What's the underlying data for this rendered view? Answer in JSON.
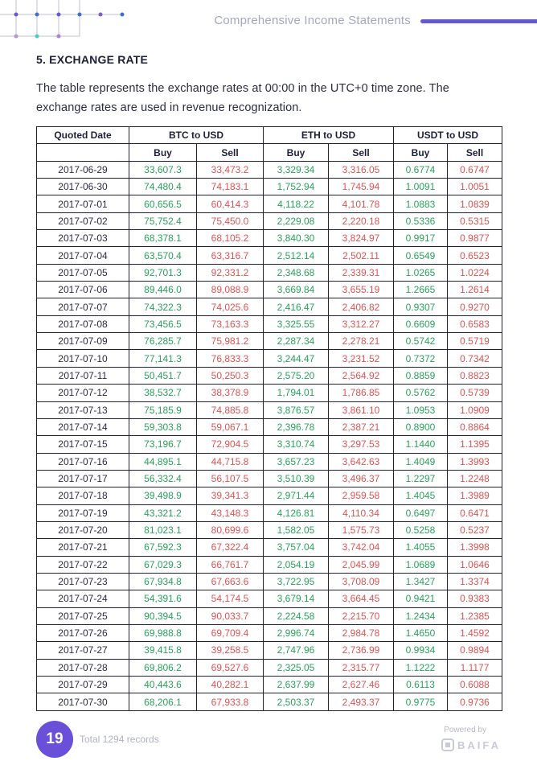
{
  "header": {
    "title": "Comprehensive Income Statements"
  },
  "section": {
    "title": "5. EXCHANGE RATE",
    "intro": "The table represents the exchange rates at 00:00 in the UTC+0 time zone. The exchange rates are used in revenue recognization."
  },
  "table": {
    "headers": {
      "date": "Quoted Date",
      "btc": "BTC to USD",
      "eth": "ETH to USD",
      "usdt": "USDT to USD"
    },
    "sub": {
      "buy": "Buy",
      "sell": "Sell"
    },
    "rows": [
      [
        "2017-06-29",
        "33,607.3",
        "33,473.2",
        "3,329.34",
        "3,316.05",
        "0.6774",
        "0.6747"
      ],
      [
        "2017-06-30",
        "74,480.4",
        "74,183.1",
        "1,752.94",
        "1,745.94",
        "1.0091",
        "1.0051"
      ],
      [
        "2017-07-01",
        "60,656.5",
        "60,414.3",
        "4,118.22",
        "4,101.78",
        "1.0883",
        "1.0839"
      ],
      [
        "2017-07-02",
        "75,752.4",
        "75,450.0",
        "2,229.08",
        "2,220.18",
        "0.5336",
        "0.5315"
      ],
      [
        "2017-07-03",
        "68,378.1",
        "68,105.2",
        "3,840.30",
        "3,824.97",
        "0.9917",
        "0.9877"
      ],
      [
        "2017-07-04",
        "63,570.4",
        "63,316.7",
        "2,512.14",
        "2,502.11",
        "0.6549",
        "0.6523"
      ],
      [
        "2017-07-05",
        "92,701.3",
        "92,331.2",
        "2,348.68",
        "2,339.31",
        "1.0265",
        "1.0224"
      ],
      [
        "2017-07-06",
        "89,446.0",
        "89,088.9",
        "3,669.84",
        "3,655.19",
        "1.2665",
        "1.2614"
      ],
      [
        "2017-07-07",
        "74,322.3",
        "74,025.6",
        "2,416.47",
        "2,406.82",
        "0.9307",
        "0.9270"
      ],
      [
        "2017-07-08",
        "73,456.5",
        "73,163.3",
        "3,325.55",
        "3,312.27",
        "0.6609",
        "0.6583"
      ],
      [
        "2017-07-09",
        "76,285.7",
        "75,981.2",
        "2,287.34",
        "2,278.21",
        "0.5742",
        "0.5719"
      ],
      [
        "2017-07-10",
        "77,141.3",
        "76,833.3",
        "3,244.47",
        "3,231.52",
        "0.7372",
        "0.7342"
      ],
      [
        "2017-07-11",
        "50,451.7",
        "50,250.3",
        "2,575.20",
        "2,564.92",
        "0.8859",
        "0.8823"
      ],
      [
        "2017-07-12",
        "38,532.7",
        "38,378.9",
        "1,794.01",
        "1,786.85",
        "0.5762",
        "0.5739"
      ],
      [
        "2017-07-13",
        "75,185.9",
        "74,885.8",
        "3,876.57",
        "3,861.10",
        "1.0953",
        "1.0909"
      ],
      [
        "2017-07-14",
        "59,303.8",
        "59,067.1",
        "2,396.78",
        "2,387.21",
        "0.8900",
        "0.8864"
      ],
      [
        "2017-07-15",
        "73,196.7",
        "72,904.5",
        "3,310.74",
        "3,297.53",
        "1.1440",
        "1.1395"
      ],
      [
        "2017-07-16",
        "44,895.1",
        "44,715.8",
        "3,657.23",
        "3,642.63",
        "1.4049",
        "1.3993"
      ],
      [
        "2017-07-17",
        "56,332.4",
        "56,107.5",
        "3,510.39",
        "3,496.37",
        "1.2297",
        "1.2248"
      ],
      [
        "2017-07-18",
        "39,498.9",
        "39,341.3",
        "2,971.44",
        "2,959.58",
        "1.4045",
        "1.3989"
      ],
      [
        "2017-07-19",
        "43,321.2",
        "43,148.3",
        "4,126.81",
        "4,110.34",
        "0.6497",
        "0.6471"
      ],
      [
        "2017-07-20",
        "81,023.1",
        "80,699.6",
        "1,582.05",
        "1,575.73",
        "0.5258",
        "0.5237"
      ],
      [
        "2017-07-21",
        "67,592.3",
        "67,322.4",
        "3,757.04",
        "3,742.04",
        "1.4055",
        "1.3998"
      ],
      [
        "2017-07-22",
        "67,029.3",
        "66,761.7",
        "2,054.19",
        "2,045.99",
        "1.0689",
        "1.0646"
      ],
      [
        "2017-07-23",
        "67,934.8",
        "67,663.6",
        "3,722.95",
        "3,708.09",
        "1.3427",
        "1.3374"
      ],
      [
        "2017-07-24",
        "54,391.6",
        "54,174.5",
        "3,679.14",
        "3,664.45",
        "0.9421",
        "0.9383"
      ],
      [
        "2017-07-25",
        "90,394.5",
        "90,033.7",
        "2,224.58",
        "2,215.70",
        "1.2434",
        "1.2385"
      ],
      [
        "2017-07-26",
        "69,988.8",
        "69,709.4",
        "2,996.74",
        "2,984.78",
        "1.4650",
        "1.4592"
      ],
      [
        "2017-07-27",
        "39,415.8",
        "39,258.5",
        "2,747.96",
        "2,736.99",
        "0.9934",
        "0.9894"
      ],
      [
        "2017-07-28",
        "69,806.2",
        "69,527.6",
        "2,325.05",
        "2,315.77",
        "1.1222",
        "1.1177"
      ],
      [
        "2017-07-29",
        "40,443.6",
        "40,282.1",
        "2,637.99",
        "2,627.46",
        "0.6113",
        "0.6088"
      ],
      [
        "2017-07-30",
        "68,206.1",
        "67,933.8",
        "2,503.37",
        "2,493.37",
        "0.9775",
        "0.9736"
      ]
    ]
  },
  "footer": {
    "page_number": "19",
    "total_records": "Total 1294 records",
    "powered_by": "Powered by",
    "brand": "BAIFA"
  },
  "colors": {
    "accent": "#6558d6",
    "buy": "#29a35a",
    "sell": "#e05353",
    "badge": "#6a4fd8"
  }
}
